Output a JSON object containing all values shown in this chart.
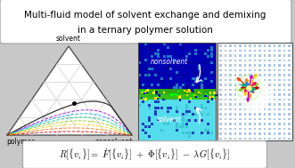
{
  "title_line1": "Multi-fluid model of solvent exchange and demixing",
  "title_line2": "in a ternary polymer solution",
  "label_solvent": "solvent",
  "label_polymer": "polymer",
  "label_nonsolvent": "nonsolvent",
  "label_nonsolvent_img": "nonsolvent",
  "label_solvent_img": "solvent",
  "bg_color": "#c8c8c8",
  "title_box_color": "#ffffff",
  "title_border": "#aaaaaa",
  "tri_edge": "#555555",
  "grid_color": "#cccccc",
  "mid_blue_dark": "#0000cc",
  "mid_cyan": "#55ddee",
  "right_bg": "#ffffff",
  "right_dot": "#6699cc",
  "formula_bg": "#ffffff",
  "formula_border": "#aaaaaa",
  "rainbow_colors": [
    "#cc0000",
    "#ff6600",
    "#ffcc00",
    "#88cc00",
    "#00cc88",
    "#0099ff",
    "#9900cc"
  ],
  "streak_colors": [
    "#cc0000",
    "#ff4400",
    "#ff8800",
    "#ffcc00",
    "#88cc00",
    "#00aa66",
    "#0088ff",
    "#cc00cc",
    "#ff0066"
  ],
  "title_fontsize": 7.5,
  "label_fontsize": 5.5,
  "formula_fontsize": 7.5
}
